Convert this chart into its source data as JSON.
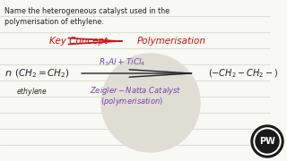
{
  "bg_color": "#f8f8f4",
  "line_color": "#d8d8c8",
  "question_text_line1": "Name the heterogeneous catalyst used in the",
  "question_text_line2": "polymerisation of ethylene.",
  "red_color": "#cc1111",
  "purple_color": "#7744aa",
  "dark_color": "#222222",
  "logo_bg": "#1a1a1a",
  "logo_ring": "#888888",
  "logo_text": "PW",
  "watermark_color": "#e0ddd5"
}
